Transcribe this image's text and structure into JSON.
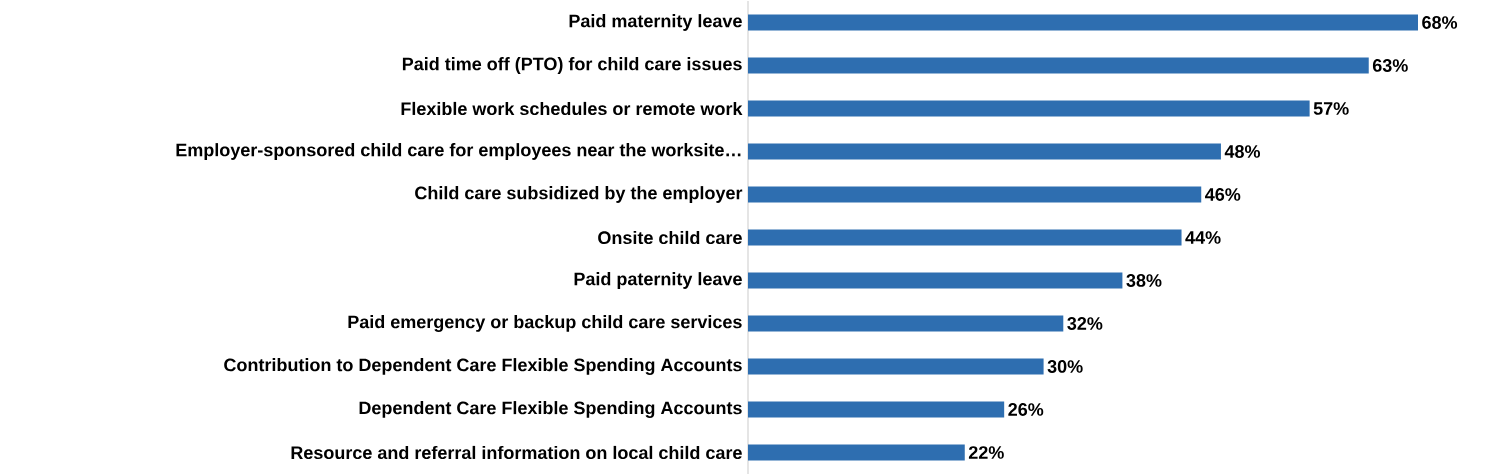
{
  "chart_data": {
    "type": "bar",
    "orientation": "horizontal",
    "categories": [
      "Paid maternity leave",
      "Paid time off (PTO) for child care issues",
      "Flexible work schedules or remote work",
      "Employer-sponsored child care for employees near the worksite…",
      "Child care subsidized by the employer",
      "Onsite child care",
      "Paid paternity leave",
      "Paid emergency or backup child care services",
      "Contribution to Dependent Care Flexible Spending Accounts",
      "Dependent Care Flexible Spending Accounts",
      "Resource and referral information on local child care"
    ],
    "values": [
      68,
      63,
      57,
      48,
      46,
      44,
      38,
      32,
      30,
      26,
      22
    ],
    "value_labels": [
      "68%",
      "63%",
      "57%",
      "48%",
      "46%",
      "44%",
      "38%",
      "32%",
      "30%",
      "26%",
      "22%"
    ],
    "color": "#2e6eb0"
  }
}
